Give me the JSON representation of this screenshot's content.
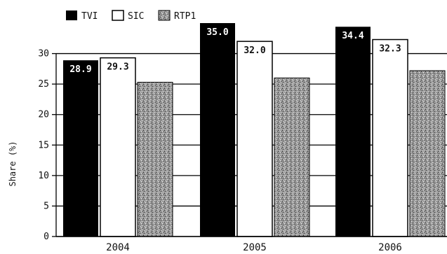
{
  "chart_data": {
    "type": "bar",
    "title": "",
    "xlabel": "",
    "ylabel": "Share (%)",
    "categories": [
      "2004",
      "2005",
      "2006"
    ],
    "series": [
      {
        "name": "TVI",
        "values": [
          28.9,
          35.0,
          34.4
        ],
        "labels": [
          "28.9",
          "35.0",
          "34.4"
        ],
        "color": "#000000"
      },
      {
        "name": "SIC",
        "values": [
          29.3,
          32.0,
          32.3
        ],
        "labels": [
          "29.3",
          "32.0",
          "32.3"
        ],
        "color": "#ffffff"
      },
      {
        "name": "RTP1",
        "values": [
          25.3,
          26.0,
          27.2
        ],
        "color": "#888888"
      }
    ],
    "ylim": [
      0,
      35
    ],
    "yticks": [
      0,
      5,
      10,
      15,
      20,
      25,
      30
    ],
    "legend_position": "top-left",
    "grid": true
  }
}
